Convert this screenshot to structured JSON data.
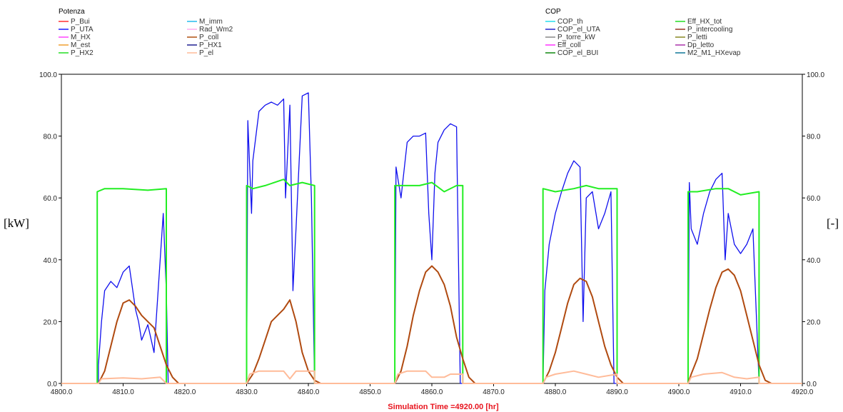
{
  "window": {
    "footer": "Simulation Time =4920.00 [hr]"
  },
  "legend": {
    "left_title": "Potenza",
    "right_title": "COP",
    "left_items": [
      {
        "label": "P_Bui",
        "color": "#ff3030"
      },
      {
        "label": "P_UTA",
        "color": "#1818ff"
      },
      {
        "label": "M_HX",
        "color": "#ff44ff"
      },
      {
        "label": "M_est",
        "color": "#f0a030"
      },
      {
        "label": "P_HX2",
        "color": "#22dd22"
      },
      {
        "label": "M_imm",
        "color": "#22bbee"
      },
      {
        "label": "Rad_Wm2",
        "color": "#ffaaee"
      },
      {
        "label": "P_coll",
        "color": "#b05010"
      },
      {
        "label": "P_HX1",
        "color": "#202090"
      },
      {
        "label": "P_el",
        "color": "#ffbb99"
      }
    ],
    "right_items": [
      {
        "label": "COP_th",
        "color": "#22ddee"
      },
      {
        "label": "COP_el_UTA",
        "color": "#2222cc"
      },
      {
        "label": "P_torre_kW",
        "color": "#888888"
      },
      {
        "label": "Eff_coll",
        "color": "#ff33ff"
      },
      {
        "label": "COP_el_BUI",
        "color": "#118811"
      },
      {
        "label": "Eff_HX_tot",
        "color": "#22dd22"
      },
      {
        "label": "P_intercooling",
        "color": "#993322"
      },
      {
        "label": "P_letti",
        "color": "#888822"
      },
      {
        "label": "Dp_letto",
        "color": "#aa33aa"
      },
      {
        "label": "M2_M1_HXevap",
        "color": "#117799"
      }
    ]
  },
  "chart_data": {
    "type": "line",
    "ylabel": "[kW]",
    "y2label": "[-]",
    "xlim": [
      4800,
      4920
    ],
    "ylim": [
      0,
      100
    ],
    "xticks": [
      "4800.0",
      "4810.0",
      "4820.0",
      "4830.0",
      "4840.0",
      "4850.0",
      "4860.0",
      "4870.0",
      "4880.0",
      "4890.0",
      "4900.0",
      "4910.0",
      "4920.0"
    ],
    "yticks": [
      "0.0",
      "20.0",
      "40.0",
      "60.0",
      "80.0",
      "100.0"
    ],
    "y2ticks": [
      "0.0",
      "20.0",
      "40.0",
      "60.0",
      "80.0",
      "100.0"
    ],
    "grid": false,
    "series": [
      {
        "name": "P_UTA",
        "color": "#1010ee",
        "points": [
          [
            4800,
            0
          ],
          [
            4806,
            0
          ],
          [
            4806,
            6
          ],
          [
            4806.5,
            20
          ],
          [
            4807,
            30
          ],
          [
            4808,
            33
          ],
          [
            4809,
            31
          ],
          [
            4810,
            36
          ],
          [
            4811,
            38
          ],
          [
            4812,
            24
          ],
          [
            4812.5,
            20
          ],
          [
            4813,
            14
          ],
          [
            4814,
            19
          ],
          [
            4815,
            10
          ],
          [
            4816,
            40
          ],
          [
            4816.5,
            55
          ],
          [
            4817,
            30
          ],
          [
            4817.3,
            0
          ],
          [
            4830,
            0
          ],
          [
            4830.2,
            85
          ],
          [
            4830.8,
            55
          ],
          [
            4831,
            72
          ],
          [
            4832,
            88
          ],
          [
            4833,
            90
          ],
          [
            4834,
            91
          ],
          [
            4835,
            90
          ],
          [
            4836,
            92
          ],
          [
            4836.3,
            60
          ],
          [
            4837,
            90
          ],
          [
            4837.5,
            30
          ],
          [
            4838,
            50
          ],
          [
            4839,
            93
          ],
          [
            4840,
            94
          ],
          [
            4840.5,
            60
          ],
          [
            4841,
            0
          ],
          [
            4854,
            0
          ],
          [
            4854.2,
            70
          ],
          [
            4855,
            60
          ],
          [
            4856,
            78
          ],
          [
            4857,
            80
          ],
          [
            4858,
            80
          ],
          [
            4859,
            81
          ],
          [
            4859.5,
            55
          ],
          [
            4860,
            40
          ],
          [
            4860.5,
            68
          ],
          [
            4861,
            78
          ],
          [
            4862,
            82
          ],
          [
            4863,
            84
          ],
          [
            4864,
            83
          ],
          [
            4864.6,
            0
          ],
          [
            4878,
            0
          ],
          [
            4878.3,
            30
          ],
          [
            4879,
            45
          ],
          [
            4880,
            55
          ],
          [
            4881,
            62
          ],
          [
            4882,
            68
          ],
          [
            4883,
            72
          ],
          [
            4884,
            70
          ],
          [
            4884.5,
            20
          ],
          [
            4885,
            60
          ],
          [
            4886,
            62
          ],
          [
            4887,
            50
          ],
          [
            4888,
            55
          ],
          [
            4889,
            62
          ],
          [
            4889.5,
            0
          ],
          [
            4901.5,
            0
          ],
          [
            4901.7,
            65
          ],
          [
            4902,
            50
          ],
          [
            4903,
            45
          ],
          [
            4904,
            55
          ],
          [
            4905,
            62
          ],
          [
            4906,
            66
          ],
          [
            4907,
            68
          ],
          [
            4907.5,
            40
          ],
          [
            4908,
            55
          ],
          [
            4909,
            45
          ],
          [
            4910,
            42
          ],
          [
            4911,
            45
          ],
          [
            4912,
            50
          ],
          [
            4913,
            0
          ],
          [
            4920,
            0
          ]
        ]
      },
      {
        "name": "P_HX2",
        "color": "#22ee22",
        "points": [
          [
            4800,
            0
          ],
          [
            4805.8,
            0
          ],
          [
            4805.8,
            62
          ],
          [
            4807,
            63
          ],
          [
            4810,
            63
          ],
          [
            4814,
            62.5
          ],
          [
            4817,
            63
          ],
          [
            4817,
            0
          ],
          [
            4830,
            0
          ],
          [
            4830,
            64
          ],
          [
            4831,
            63
          ],
          [
            4833,
            64
          ],
          [
            4836,
            66
          ],
          [
            4837,
            64
          ],
          [
            4839,
            65
          ],
          [
            4841,
            64
          ],
          [
            4841,
            0
          ],
          [
            4854,
            0
          ],
          [
            4854,
            64
          ],
          [
            4856,
            64
          ],
          [
            4858,
            64
          ],
          [
            4860,
            65
          ],
          [
            4862,
            62
          ],
          [
            4864,
            64
          ],
          [
            4865,
            64
          ],
          [
            4865,
            0
          ],
          [
            4878,
            0
          ],
          [
            4878,
            63
          ],
          [
            4880,
            62
          ],
          [
            4883,
            63
          ],
          [
            4885,
            64
          ],
          [
            4887,
            63
          ],
          [
            4890,
            63
          ],
          [
            4890,
            0
          ],
          [
            4901.5,
            0
          ],
          [
            4901.5,
            62
          ],
          [
            4903,
            62
          ],
          [
            4906,
            63
          ],
          [
            4908,
            63
          ],
          [
            4910,
            61
          ],
          [
            4913,
            62
          ],
          [
            4913,
            0
          ],
          [
            4920,
            0
          ]
        ]
      },
      {
        "name": "P_coll",
        "color": "#b04a10",
        "points": [
          [
            4800,
            0
          ],
          [
            4806,
            0
          ],
          [
            4807,
            4
          ],
          [
            4808,
            12
          ],
          [
            4809,
            20
          ],
          [
            4810,
            26
          ],
          [
            4811,
            27
          ],
          [
            4812,
            25
          ],
          [
            4813,
            22
          ],
          [
            4814,
            20
          ],
          [
            4815,
            18
          ],
          [
            4816,
            12
          ],
          [
            4817,
            6
          ],
          [
            4818,
            2
          ],
          [
            4819,
            0
          ],
          [
            4830,
            0
          ],
          [
            4831,
            3
          ],
          [
            4832,
            8
          ],
          [
            4833,
            14
          ],
          [
            4834,
            20
          ],
          [
            4835,
            22
          ],
          [
            4836,
            24
          ],
          [
            4837,
            27
          ],
          [
            4838,
            20
          ],
          [
            4839,
            10
          ],
          [
            4840,
            4
          ],
          [
            4841,
            1
          ],
          [
            4842,
            0
          ],
          [
            4854,
            0
          ],
          [
            4855,
            4
          ],
          [
            4856,
            12
          ],
          [
            4857,
            22
          ],
          [
            4858,
            30
          ],
          [
            4859,
            36
          ],
          [
            4860,
            38
          ],
          [
            4861,
            36
          ],
          [
            4862,
            32
          ],
          [
            4863,
            25
          ],
          [
            4864,
            15
          ],
          [
            4865,
            8
          ],
          [
            4866,
            2
          ],
          [
            4867,
            0
          ],
          [
            4878,
            0
          ],
          [
            4879,
            4
          ],
          [
            4880,
            10
          ],
          [
            4881,
            18
          ],
          [
            4882,
            26
          ],
          [
            4883,
            32
          ],
          [
            4884,
            34
          ],
          [
            4885,
            33
          ],
          [
            4886,
            28
          ],
          [
            4887,
            20
          ],
          [
            4888,
            12
          ],
          [
            4889,
            6
          ],
          [
            4890,
            2
          ],
          [
            4891,
            0
          ],
          [
            4901.5,
            0
          ],
          [
            4902,
            3
          ],
          [
            4903,
            8
          ],
          [
            4904,
            16
          ],
          [
            4905,
            24
          ],
          [
            4906,
            31
          ],
          [
            4907,
            36
          ],
          [
            4908,
            37
          ],
          [
            4909,
            35
          ],
          [
            4910,
            30
          ],
          [
            4911,
            22
          ],
          [
            4912,
            14
          ],
          [
            4913,
            6
          ],
          [
            4914,
            1
          ],
          [
            4915,
            0
          ],
          [
            4920,
            0
          ]
        ]
      },
      {
        "name": "P_el",
        "color": "#ffbb99",
        "points": [
          [
            4800,
            0
          ],
          [
            4806,
            0
          ],
          [
            4806.5,
            1.5
          ],
          [
            4810,
            1.8
          ],
          [
            4813,
            1.5
          ],
          [
            4816,
            2
          ],
          [
            4817,
            0
          ],
          [
            4830,
            0
          ],
          [
            4830.5,
            3
          ],
          [
            4832,
            4
          ],
          [
            4836,
            4
          ],
          [
            4837,
            1.5
          ],
          [
            4838,
            4
          ],
          [
            4841,
            4
          ],
          [
            4841,
            0
          ],
          [
            4854,
            0
          ],
          [
            4854.5,
            3
          ],
          [
            4856,
            4
          ],
          [
            4859,
            4
          ],
          [
            4860,
            2
          ],
          [
            4862,
            2
          ],
          [
            4863,
            3
          ],
          [
            4865,
            3
          ],
          [
            4865,
            0
          ],
          [
            4878,
            0
          ],
          [
            4878.5,
            2
          ],
          [
            4880,
            3
          ],
          [
            4883,
            4
          ],
          [
            4885,
            3
          ],
          [
            4887,
            2
          ],
          [
            4890,
            3
          ],
          [
            4890,
            0
          ],
          [
            4901.5,
            0
          ],
          [
            4902,
            2
          ],
          [
            4904,
            3
          ],
          [
            4907,
            3.5
          ],
          [
            4909,
            2
          ],
          [
            4911,
            1.5
          ],
          [
            4913,
            2
          ],
          [
            4913,
            0
          ],
          [
            4920,
            0
          ]
        ]
      }
    ]
  }
}
